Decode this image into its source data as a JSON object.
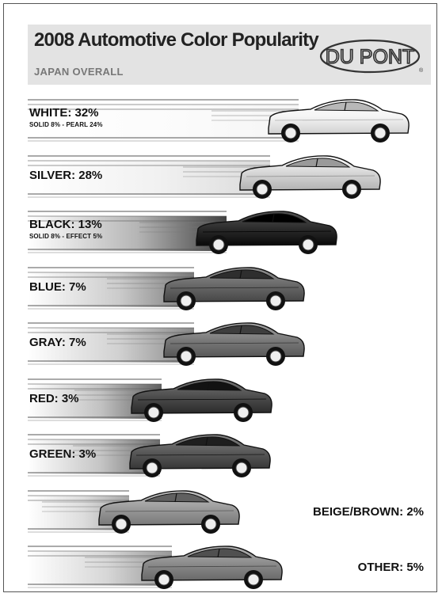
{
  "header": {
    "title": "2008 Automotive Color Popularity",
    "subtitle": "JAPAN OVERALL",
    "logo_text": "DU PONT",
    "logo_mark": "®"
  },
  "chart_data": {
    "type": "bar",
    "title": "2008 Automotive Color Popularity",
    "subtitle": "JAPAN OVERALL",
    "xlabel": "",
    "ylabel": "",
    "categories": [
      "WHITE",
      "SILVER",
      "BLACK",
      "BLUE",
      "GRAY",
      "RED",
      "GREEN",
      "BEIGE/BROWN",
      "OTHER"
    ],
    "values": [
      32,
      28,
      13,
      7,
      7,
      3,
      3,
      2,
      5
    ],
    "unit": "%",
    "labels": [
      "WHITE: 32%",
      "SILVER: 28%",
      "BLACK: 13%",
      "BLUE: 7%",
      "GRAY: 7%",
      "RED: 3%",
      "GREEN: 3%",
      "BEIGE/BROWN: 2%",
      "OTHER: 5%"
    ],
    "sublabels": [
      "SOLID 8% - PEARL 24%",
      "",
      "SOLID 8% - EFFECT 5%",
      "",
      "",
      "",
      "",
      "",
      ""
    ],
    "breakdown": {
      "WHITE": [
        {
          "name": "SOLID",
          "value": 8
        },
        {
          "name": "PEARL",
          "value": 24
        }
      ],
      "BLACK": [
        {
          "name": "SOLID",
          "value": 8
        },
        {
          "name": "EFFECT",
          "value": 5
        }
      ]
    },
    "colors": [
      "#f4f4f4",
      "#d6d6d6",
      "#2c2c2c",
      "#6a6a6a",
      "#7a7a7a",
      "#4e4e4e",
      "#5a5a5a",
      "#9c9c9c",
      "#8c8c8c"
    ],
    "grid": false,
    "legend": "none"
  }
}
